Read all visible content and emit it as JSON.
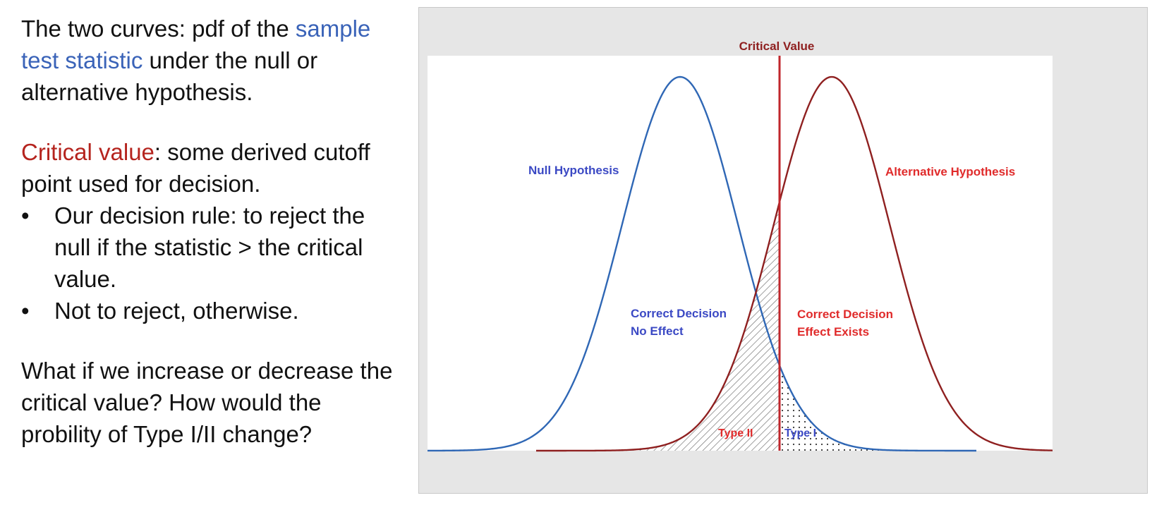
{
  "text": {
    "p1_prefix": "The two curves: pdf of the ",
    "p1_highlight": "sample test statistic",
    "p1_suffix": " under the null or alternative hypothesis.",
    "p2_highlight": "Critical value",
    "p2_suffix": ": some derived cutoff point used for decision.",
    "bullets": [
      "Our decision rule: to reject the null if the statistic > the critical value.",
      "Not to reject, otherwise."
    ],
    "bullet_glyph": "•",
    "p3": "What if we increase or decrease the critical value? How would the probility of Type I/II change?"
  },
  "diagram": {
    "critical_label": "Critical Value",
    "null_label": "Null Hypothesis",
    "alt_label": "Alternative Hypothesis",
    "correct_no_effect": [
      "Correct Decision",
      "No Effect"
    ],
    "correct_effect": [
      "Correct Decision",
      "Effect Exists"
    ],
    "type2_label": "Type II",
    "type1_label": "Type I"
  },
  "colors": {
    "null_curve": "#2f67b5",
    "alt_curve": "#8f2020",
    "critical_line": "#c0262b",
    "null_text": "#3b49c4",
    "alt_text": "#e02b2b",
    "highlight_blue": "#3a63b8",
    "highlight_red": "#b5241e"
  }
}
